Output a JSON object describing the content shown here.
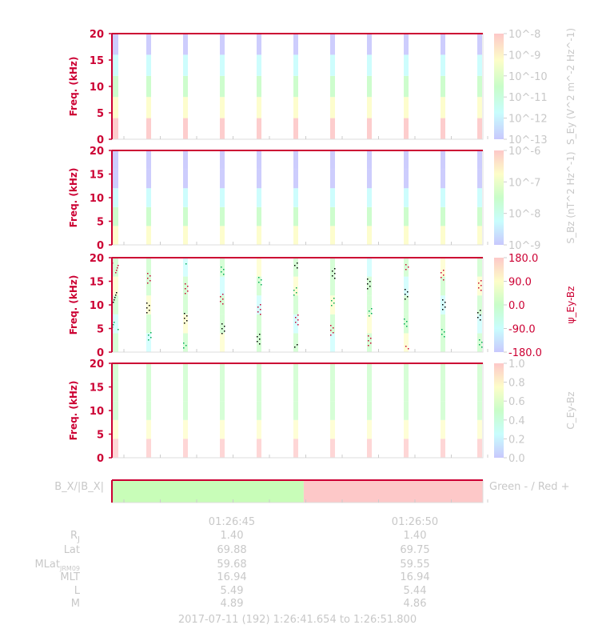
{
  "chart_data": [
    {
      "type": "heatmap",
      "ylabel": "Freq. (kHz)",
      "yticks": [
        "0",
        "5",
        "10",
        "15",
        "20"
      ],
      "ylim": [
        0,
        20
      ],
      "colorbar_label": "S_Ey (V^2 m^-2 Hz^-1)",
      "colorbar_ticks": [
        "10^-8",
        "10^-9",
        "10^-10",
        "10^-11",
        "10^-12",
        "10^-13"
      ],
      "colorbar_scale": "log",
      "bursts": 11
    },
    {
      "type": "heatmap",
      "ylabel": "Freq. (kHz)",
      "yticks": [
        "0",
        "5",
        "10",
        "15",
        "20"
      ],
      "ylim": [
        0,
        20
      ],
      "colorbar_label": "S_Bz (nT^2 Hz^-1)",
      "colorbar_ticks": [
        "10^-6",
        "10^-7",
        "10^-8",
        "10^-9"
      ],
      "colorbar_scale": "log",
      "bursts": 11
    },
    {
      "type": "heatmap",
      "ylabel": "Freq. (kHz)",
      "yticks": [
        "0",
        "5",
        "10",
        "15",
        "20"
      ],
      "ylim": [
        0,
        20
      ],
      "colorbar_label": "ψ_Ey-Bz",
      "colorbar_ticks": [
        "180.0",
        "90.0",
        "0.0",
        "-90.0",
        "-180.0"
      ],
      "bursts": 11
    },
    {
      "type": "heatmap",
      "ylabel": "Freq. (kHz)",
      "yticks": [
        "0",
        "5",
        "10",
        "15",
        "20"
      ],
      "ylim": [
        0,
        20
      ],
      "colorbar_label": "C_Ey-Bz",
      "colorbar_ticks": [
        "1.0",
        "0.8",
        "0.6",
        "0.4",
        "0.2",
        "0.0"
      ],
      "colorbar_range": [
        0,
        1
      ],
      "bursts": 11
    },
    {
      "type": "bar",
      "ylabel": "B_X/|B_X|",
      "legend": "Green - / Red +",
      "segments": [
        {
          "sign": "-",
          "color": "#c8fdb8",
          "fraction": 0.517
        },
        {
          "sign": "+",
          "color": "#fdc8c8",
          "fraction": 0.483
        }
      ]
    }
  ],
  "time_axis": {
    "ticks": [
      {
        "label": "01:26:45",
        "R": "1.40",
        "Lat": "69.88",
        "MLat": "59.68",
        "MLT": "16.94",
        "L": "5.49",
        "M": "4.89"
      },
      {
        "label": "01:26:50",
        "R": "1.40",
        "Lat": "69.75",
        "MLat": "59.55",
        "MLT": "16.94",
        "L": "5.44",
        "M": "4.86"
      }
    ],
    "row_labels": {
      "R": "R",
      "R_sub": "J",
      "Lat": "Lat",
      "MLat": "MLat",
      "MLat_sub": "JRM09",
      "MLT": "MLT",
      "L": "L",
      "M": "M"
    }
  },
  "footer": "2017-07-11 (192) 1:26:41.654 to 1:26:51.800",
  "colors": {
    "axis": "#cc0033",
    "gray_text": "#c8c8c8",
    "frame": "#cc0033"
  }
}
